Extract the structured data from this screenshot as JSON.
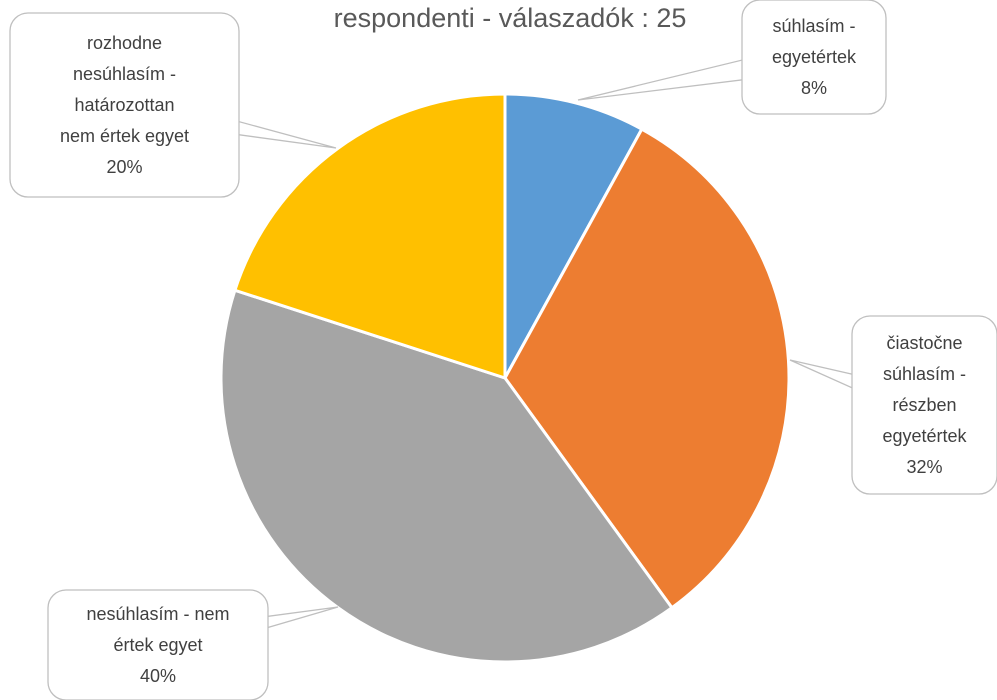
{
  "chart_data": {
    "type": "pie",
    "title": "respondenti - válaszadók : 25",
    "categories": [
      "súhlasím - egyetértek",
      "čiastočne súhlasím - részben egyetértek",
      "nesúhlasím - nem értek egyet",
      "rozhodne nesúhlasím - határozottan nem értek egyet"
    ],
    "values": [
      8,
      32,
      40,
      20
    ],
    "value_labels": [
      "8%",
      "32%",
      "40%",
      "20%"
    ],
    "label_lines": [
      [
        "súhlasím -",
        "egyetértek"
      ],
      [
        "čiastočne",
        "súhlasím -",
        "részben",
        "egyetértek"
      ],
      [
        "nesúhlasím - nem",
        "értek egyet"
      ],
      [
        "rozhodne",
        "nesúhlasím -",
        "határozottan",
        "nem értek egyet"
      ]
    ],
    "colors": [
      "#5b9bd5",
      "#ed7d31",
      "#a5a5a5",
      "#ffc000"
    ],
    "legend": "none"
  }
}
